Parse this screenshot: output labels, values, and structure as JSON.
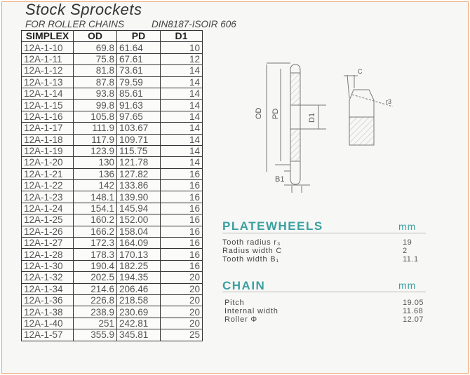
{
  "header": {
    "title": "Stock Sprockets",
    "subtitle": "FOR ROLLER CHAINS",
    "standard": "DIN8187-ISOIR 606"
  },
  "table": {
    "columns": [
      "SIMPLEX",
      "OD",
      "PD",
      "D1"
    ],
    "rows": [
      [
        "12A-1-10",
        "69.8",
        "61.64",
        "10"
      ],
      [
        "12A-1-11",
        "75.8",
        "67.61",
        "12"
      ],
      [
        "12A-1-12",
        "81.8",
        "73.61",
        "14"
      ],
      [
        "12A-1-13",
        "87.8",
        "79.59",
        "14"
      ],
      [
        "12A-1-14",
        "93.8",
        "85.61",
        "14"
      ],
      [
        "12A-1-15",
        "99.8",
        "91.63",
        "14"
      ],
      [
        "12A-1-16",
        "105.8",
        "97.65",
        "14"
      ],
      [
        "12A-1-17",
        "111.9",
        "103.67",
        "14"
      ],
      [
        "12A-1-18",
        "117.9",
        "109.71",
        "14"
      ],
      [
        "12A-1-19",
        "123.9",
        "115.75",
        "14"
      ],
      [
        "12A-1-20",
        "130",
        "121.78",
        "14"
      ],
      [
        "12A-1-21",
        "136",
        "127.82",
        "16"
      ],
      [
        "12A-1-22",
        "142",
        "133.86",
        "16"
      ],
      [
        "12A-1-23",
        "148.1",
        "139.90",
        "16"
      ],
      [
        "12A-1-24",
        "154.1",
        "145.94",
        "16"
      ],
      [
        "12A-1-25",
        "160.2",
        "152.00",
        "16"
      ],
      [
        "12A-1-26",
        "166.2",
        "158.04",
        "16"
      ],
      [
        "12A-1-27",
        "172.3",
        "164.09",
        "16"
      ],
      [
        "12A-1-28",
        "178.3",
        "170.13",
        "16"
      ],
      [
        "12A-1-30",
        "190.4",
        "182.25",
        "16"
      ],
      [
        "12A-1-32",
        "202.5",
        "194.35",
        "20"
      ],
      [
        "12A-1-34",
        "214.6",
        "206.46",
        "20"
      ],
      [
        "12A-1-36",
        "226.8",
        "218.58",
        "20"
      ],
      [
        "12A-1-38",
        "238.9",
        "230.69",
        "20"
      ],
      [
        "12A-1-40",
        "251",
        "242.81",
        "20"
      ],
      [
        "12A-1-57",
        "355.9",
        "345.81",
        "25"
      ]
    ]
  },
  "diagram": {
    "labels": {
      "od": "OD",
      "pd": "PD",
      "d1": "D1",
      "b1": "B1",
      "c": "C",
      "r": "r3"
    }
  },
  "platewheels": {
    "title": "PLATEWHEELS",
    "unit": "mm",
    "items": [
      {
        "label": "Tooth radius r₃",
        "value": "19"
      },
      {
        "label": "Radius width C",
        "value": "2"
      },
      {
        "label": "Tooth width B₁",
        "value": "11.1"
      }
    ]
  },
  "chain": {
    "title": "CHAIN",
    "unit": "mm",
    "items": [
      {
        "label": "Pitch",
        "value": "19.05"
      },
      {
        "label": "Internal width",
        "value": "11.68"
      },
      {
        "label": "Roller Φ",
        "value": "12.07"
      }
    ]
  },
  "colors": {
    "accent": "#3aa0a0",
    "border": "#f0a070"
  }
}
